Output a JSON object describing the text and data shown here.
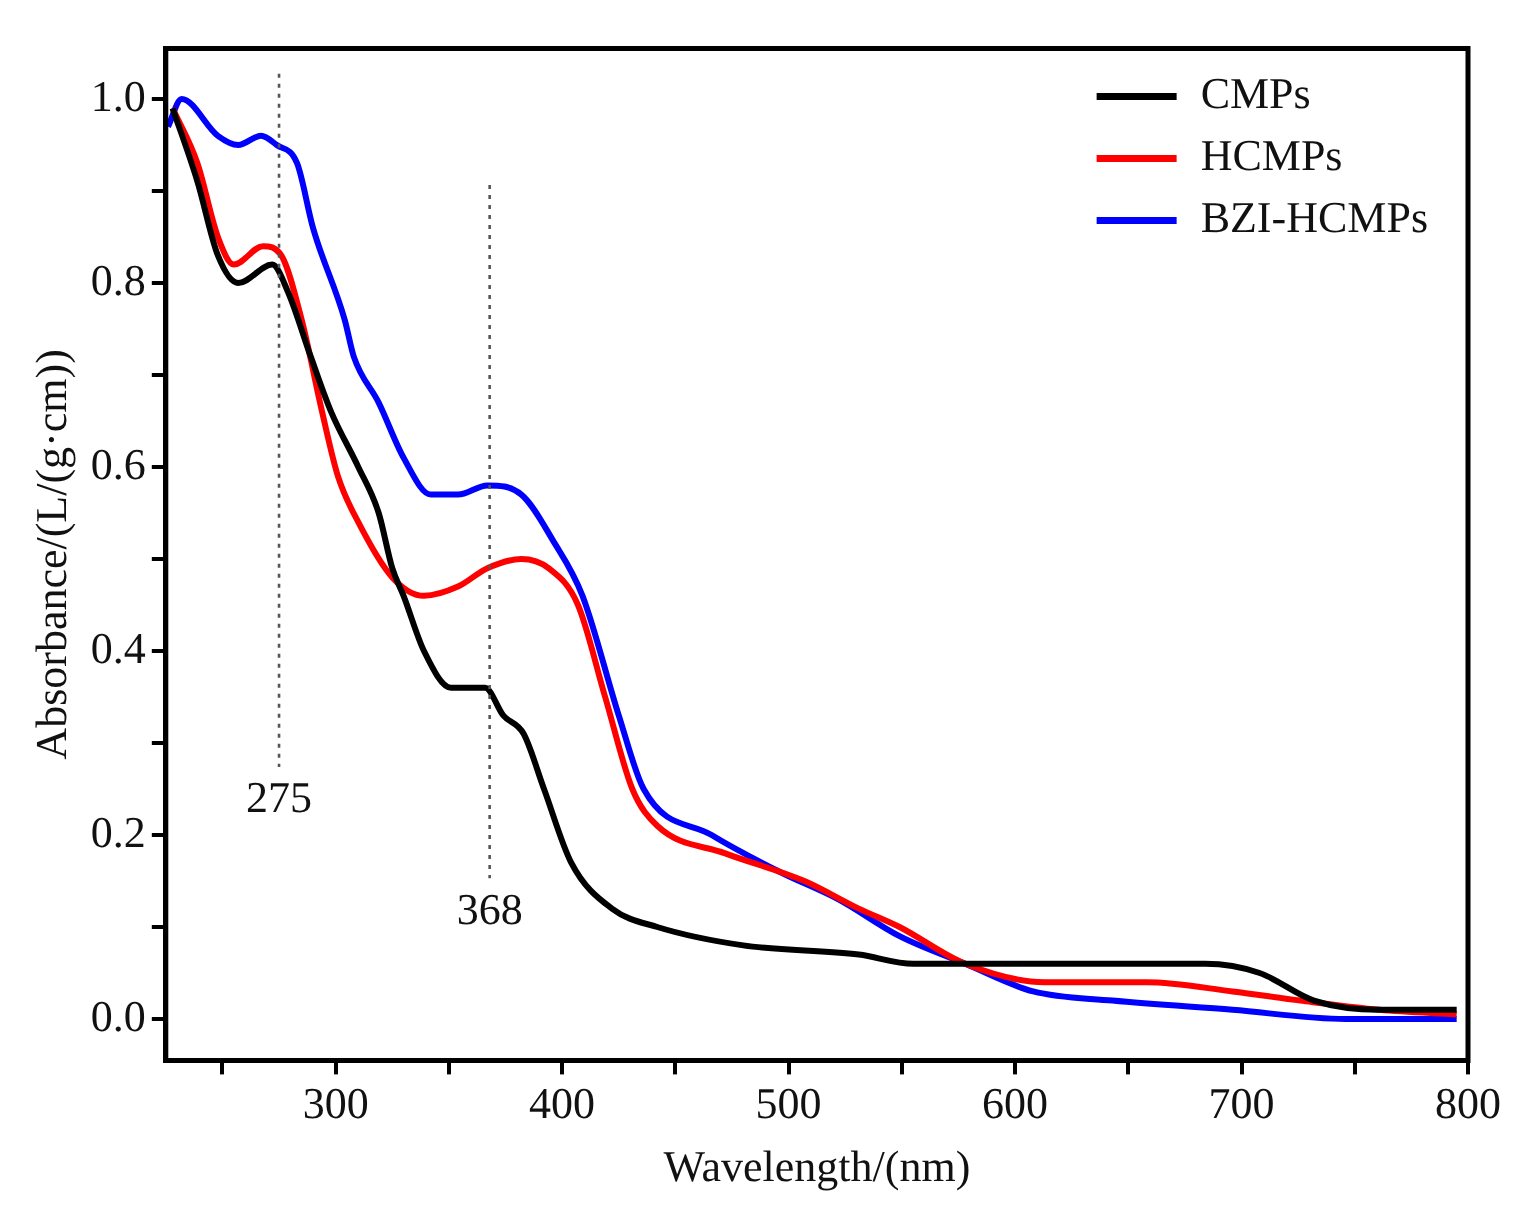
{
  "chart_data": {
    "type": "line",
    "xlabel": "Wavelength/(nm)",
    "ylabel": "Absorbance/(L/(g·cm))",
    "xlim": [
      225,
      800
    ],
    "ylim": [
      -0.045,
      1.055
    ],
    "xticks": [
      {
        "value": 250,
        "label": null
      },
      300,
      {
        "value": 350,
        "label": null
      },
      400,
      {
        "value": 450,
        "label": null
      },
      500,
      {
        "value": 550,
        "label": null
      },
      600,
      {
        "value": 650,
        "label": null
      },
      700,
      {
        "value": 750,
        "label": null
      },
      800
    ],
    "yticks": [
      {
        "value": 0,
        "label": "0.0"
      },
      {
        "value": 0.1,
        "label": null
      },
      0.2,
      {
        "value": 0.3,
        "label": null
      },
      0.4,
      {
        "value": 0.5,
        "label": null
      },
      0.6,
      {
        "value": 0.7,
        "label": null
      },
      0.8,
      {
        "value": 0.9,
        "label": null
      },
      {
        "value": 1,
        "label": "1.0"
      }
    ],
    "grid": false,
    "legend": "top right",
    "marker": "none",
    "line_style": "solid",
    "series": [
      {
        "name": "CMPs",
        "color": "#000000",
        "x": [
          228,
          239,
          248,
          257,
          272,
          279,
          289,
          298,
          310,
          319,
          325,
          330,
          339,
          351,
          366,
          374,
          383,
          392,
          404,
          422,
          442,
          480,
          531,
          555,
          613,
          684,
          708,
          732,
          761,
          795
        ],
        "values": [
          0.99,
          0.91,
          0.83,
          0.8,
          0.82,
          0.79,
          0.72,
          0.66,
          0.6,
          0.55,
          0.49,
          0.46,
          0.4,
          0.36,
          0.36,
          0.33,
          0.31,
          0.25,
          0.17,
          0.12,
          0.1,
          0.08,
          0.07,
          0.06,
          0.06,
          0.06,
          0.05,
          0.02,
          0.01,
          0.01
        ]
      },
      {
        "name": "HCMPs",
        "color": "#ff0000",
        "x": [
          228,
          239,
          248,
          255,
          268,
          276,
          285,
          294,
          301,
          310,
          325,
          339,
          354,
          367,
          382,
          394,
          407,
          419,
          431,
          442,
          472,
          507,
          531,
          549,
          578,
          613,
          658,
          696,
          726,
          761,
          795
        ],
        "values": [
          0.99,
          0.93,
          0.85,
          0.82,
          0.84,
          0.83,
          0.76,
          0.66,
          0.59,
          0.54,
          0.48,
          0.46,
          0.47,
          0.49,
          0.5,
          0.49,
          0.45,
          0.35,
          0.25,
          0.21,
          0.18,
          0.15,
          0.12,
          0.1,
          0.06,
          0.04,
          0.04,
          0.03,
          0.02,
          0.01,
          0.005
        ]
      },
      {
        "name": "BZI-HCMPs",
        "color": "#0000ff",
        "x": [
          226,
          232,
          248,
          257,
          267,
          274,
          283,
          290,
          304,
          308,
          319,
          330,
          342,
          354,
          367,
          382,
          396,
          409,
          425,
          436,
          466,
          496,
          522,
          549,
          578,
          608,
          643,
          696,
          746,
          795
        ],
        "values": [
          0.97,
          1.0,
          0.96,
          0.95,
          0.96,
          0.95,
          0.93,
          0.86,
          0.76,
          0.72,
          0.67,
          0.61,
          0.57,
          0.57,
          0.58,
          0.57,
          0.52,
          0.46,
          0.33,
          0.25,
          0.2,
          0.16,
          0.13,
          0.09,
          0.06,
          0.03,
          0.02,
          0.01,
          0.0,
          0.0
        ]
      }
    ],
    "ref_lines": [
      {
        "axis": "x",
        "value": 275,
        "label": "275",
        "line_style": "dotted",
        "color": "#555555"
      },
      {
        "axis": "x",
        "value": 368,
        "label": "368",
        "line_style": "dotted",
        "color": "#555555"
      }
    ]
  }
}
